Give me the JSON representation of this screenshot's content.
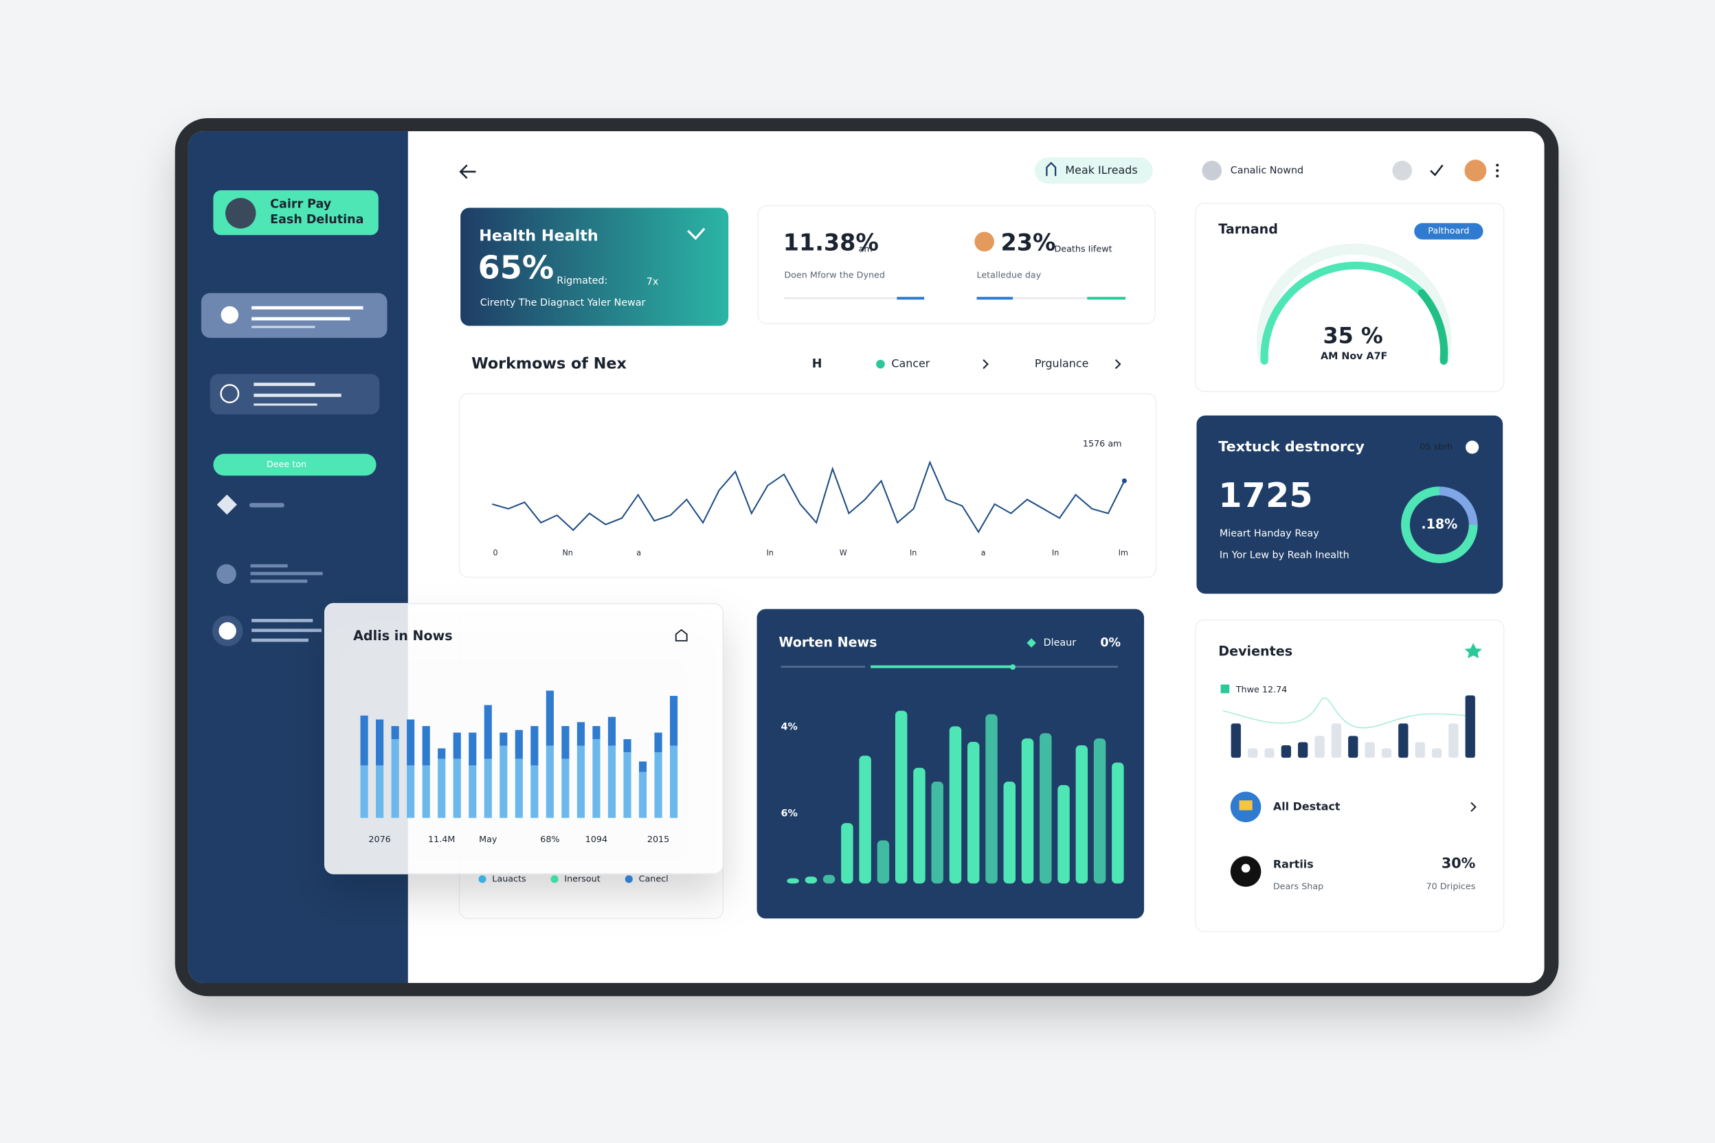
{
  "sidebar": {
    "profile_line1": "Cairr Pay",
    "profile_line2": "Eash Delutina",
    "button": "Deee ton"
  },
  "header": {
    "pill": "Meak ILreads",
    "user": "Canalic Nownd"
  },
  "health_card": {
    "title": "Health Health",
    "value": "65%",
    "sub": "Rigmated:",
    "badge": "7x",
    "caption": "Cirenty The Diagnact Yaler Newar"
  },
  "stats": [
    {
      "value": "11.38%",
      "unit": "am",
      "caption": "Doen Mforw the Dyned"
    },
    {
      "value": "23%",
      "unit": "Deaths Iifewt",
      "caption": "Letalledue day"
    }
  ],
  "gauge": {
    "title": "Tarnand",
    "badge": "Palthoard",
    "value": "35 %",
    "sub": "AM Nov A7F"
  },
  "summary_card": {
    "title": "Textuck destnorcy",
    "badge": "05 sbrh",
    "value": "1725",
    "line1": "Mieart Handay Reay",
    "line2": "In Yor Lew by Reah Inealth",
    "donut": ".18%"
  },
  "list": [
    {
      "title": "All Destact"
    },
    {
      "title": "Rartiis",
      "sub": "Dears Shap",
      "value": "30%",
      "value_sub": "70 Dripices"
    }
  ],
  "chart_data": [
    {
      "type": "line",
      "title": "Workmows of Nex",
      "legend": [
        "H",
        "Cancer",
        "Prgulance"
      ],
      "annotation": "1576 am",
      "xtick_labels": [
        "0",
        "Nn",
        "a",
        "In",
        "W",
        "In",
        "a",
        "In",
        "Im"
      ],
      "color": "#1f4e86",
      "ylim": [
        0,
        100
      ],
      "values": [
        40,
        35,
        42,
        20,
        28,
        12,
        30,
        18,
        25,
        50,
        22,
        28,
        45,
        20,
        55,
        75,
        30,
        60,
        72,
        40,
        20,
        78,
        30,
        45,
        65,
        20,
        35,
        85,
        45,
        38,
        10,
        40,
        30,
        45,
        35,
        25,
        50,
        35,
        30,
        65
      ]
    },
    {
      "type": "bar",
      "stacked": true,
      "title": "Adlis in Nows",
      "ylim": [
        0,
        100
      ],
      "categories": [
        null,
        "2076",
        null,
        null,
        null,
        "11.4M",
        null,
        null,
        "May",
        null,
        null,
        null,
        "68%",
        null,
        null,
        "1094",
        null,
        null,
        null,
        "2015",
        null
      ],
      "series": [
        {
          "color": "#6cb8ec",
          "values": [
            40,
            40,
            60,
            40,
            40,
            45,
            45,
            40,
            45,
            55,
            45,
            40,
            55,
            45,
            55,
            60,
            55,
            50,
            35,
            50,
            55
          ]
        },
        {
          "color": "#2f7bd0",
          "values": [
            38,
            35,
            10,
            35,
            30,
            8,
            20,
            25,
            41,
            10,
            22,
            30,
            42,
            25,
            18,
            10,
            22,
            10,
            8,
            15,
            38
          ]
        }
      ],
      "legend": [
        {
          "name": "Lauacts",
          "color": "#3bb0e0"
        },
        {
          "name": "Inersout",
          "color": "#3ddba0"
        },
        {
          "name": "Canecl",
          "color": "#2f7bd0"
        }
      ]
    },
    {
      "type": "bar",
      "title": "Worten News",
      "legend": "Dleaur",
      "value_text": "0%",
      "y_labels": [
        "4%",
        "6%"
      ],
      "color": "#4ee6b5",
      "ylim": [
        0,
        100
      ],
      "values": [
        3,
        4,
        5,
        35,
        74,
        25,
        100,
        67,
        59,
        91,
        82,
        98,
        59,
        84,
        87,
        57,
        80,
        84,
        70
      ]
    },
    {
      "type": "bar",
      "title": "Devientes",
      "legend": "Thwe 12.74",
      "ylim": [
        0,
        100
      ],
      "series": [
        {
          "color": "#1e3a63",
          "values": [
            55,
            null,
            null,
            20,
            25,
            null,
            null,
            35,
            null,
            null,
            55,
            null,
            null,
            null,
            100
          ]
        },
        {
          "color": "#dfe3ea",
          "values": [
            null,
            15,
            15,
            null,
            null,
            35,
            55,
            null,
            25,
            15,
            null,
            25,
            15,
            55,
            null
          ]
        }
      ]
    }
  ]
}
